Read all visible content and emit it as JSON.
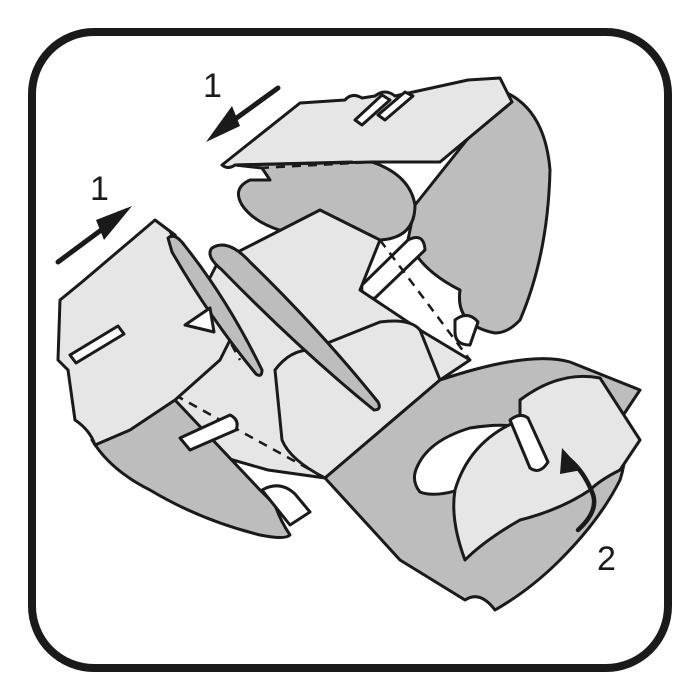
{
  "diagram": {
    "step_labels": [
      "1",
      "1",
      "2"
    ],
    "colors": {
      "frame": "#1a1a1a",
      "panel_light": "#e6e6e6",
      "panel_dark": "#bdbdbd",
      "background": "#ffffff"
    }
  }
}
